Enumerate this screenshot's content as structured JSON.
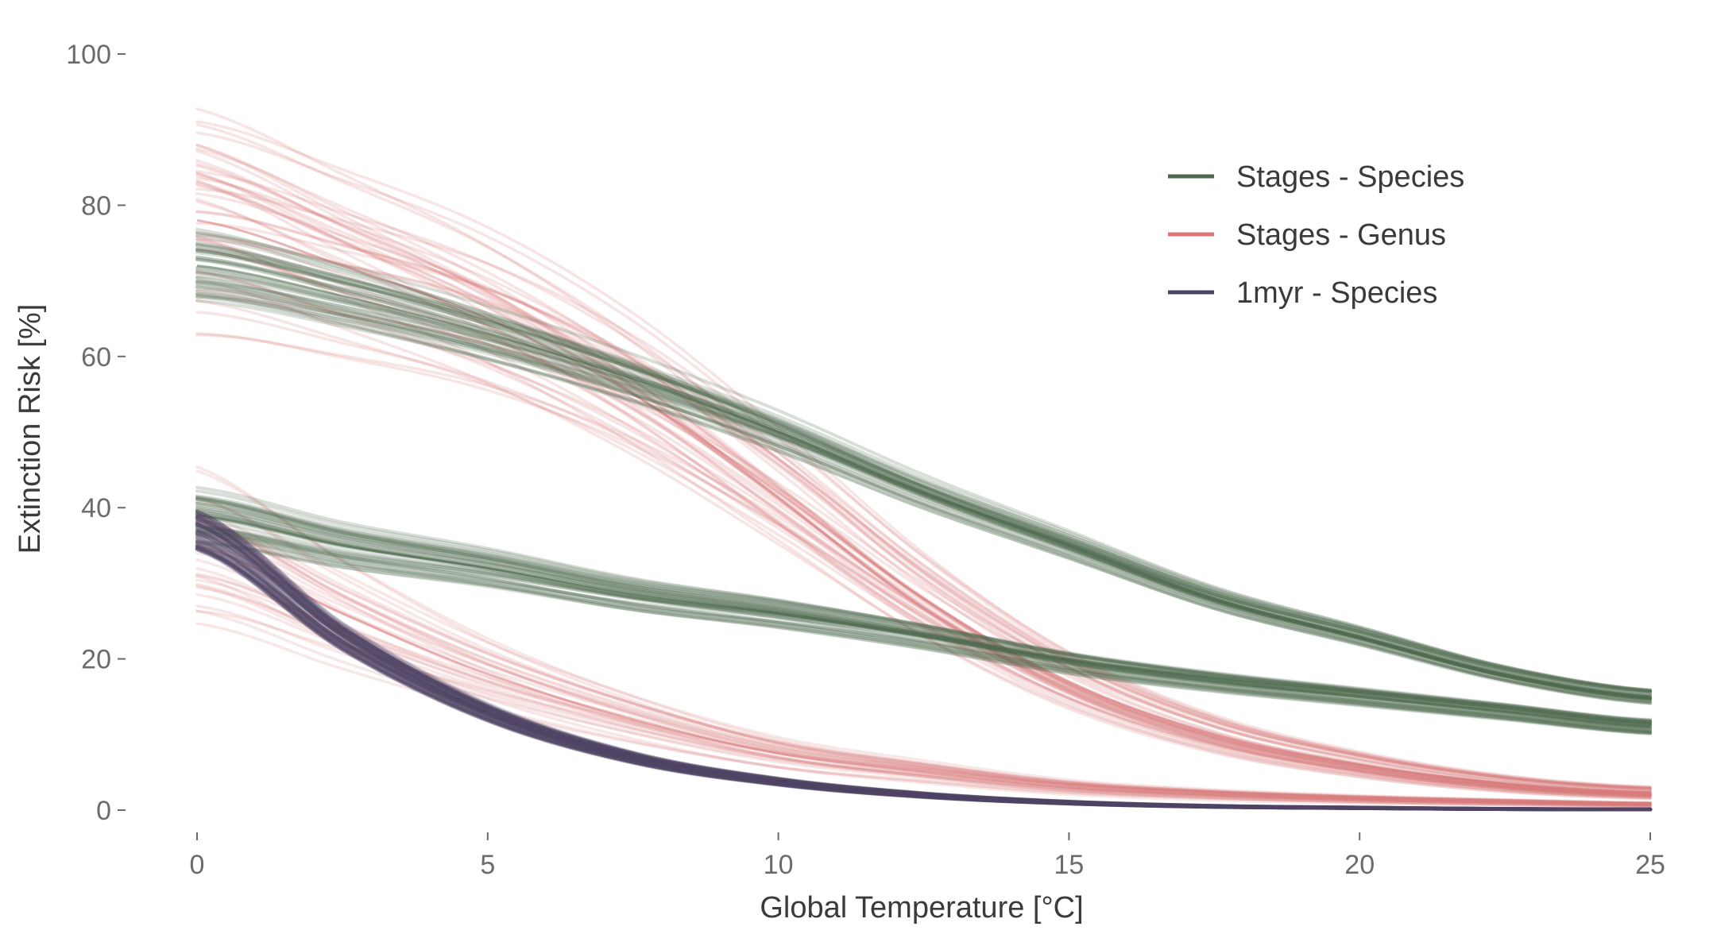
{
  "chart_data": {
    "type": "line",
    "xlabel": "Global Temperature [°C]",
    "ylabel": "Extinction Risk [%]",
    "xlim": [
      0,
      25
    ],
    "ylim": [
      0,
      100
    ],
    "x_ticks": [
      0,
      5,
      10,
      15,
      20,
      25
    ],
    "y_ticks": [
      0,
      20,
      40,
      60,
      80,
      100
    ],
    "grid": false,
    "legend_position": "top-right",
    "legend": [
      {
        "name": "Stages - Species",
        "color": "#4d6a4f"
      },
      {
        "name": "Stages - Genus",
        "color": "#d9787a"
      },
      {
        "name": "1myr - Species",
        "color": "#4e4466"
      }
    ],
    "x": [
      0,
      2.5,
      5,
      7.5,
      10,
      12.5,
      15,
      17.5,
      20,
      22.5,
      25
    ],
    "series": [
      {
        "name": "Stages - Species",
        "color": "#4d6a4f",
        "values": [
          72,
          68,
          63,
          57,
          50,
          42,
          35,
          28,
          23,
          18,
          15
        ]
      },
      {
        "name": "Stages - Species",
        "color": "#4d6a4f",
        "values": [
          39,
          35,
          32,
          28.5,
          26,
          23,
          19.5,
          17,
          15,
          13,
          11
        ]
      },
      {
        "name": "Stages - Genus",
        "color": "#d9787a",
        "values": [
          78,
          72,
          65,
          55,
          42,
          28,
          17,
          10,
          6,
          3.5,
          2.3
        ]
      },
      {
        "name": "Stages - Genus",
        "color": "#d9787a",
        "values": [
          35,
          26,
          18,
          12,
          7.5,
          5,
          3,
          2,
          1.4,
          1,
          0.7
        ]
      },
      {
        "name": "1myr - Species",
        "color": "#4e4466",
        "values": [
          37,
          23,
          13,
          7,
          3.8,
          2,
          1,
          0.5,
          0.3,
          0.15,
          0.1
        ]
      }
    ]
  }
}
